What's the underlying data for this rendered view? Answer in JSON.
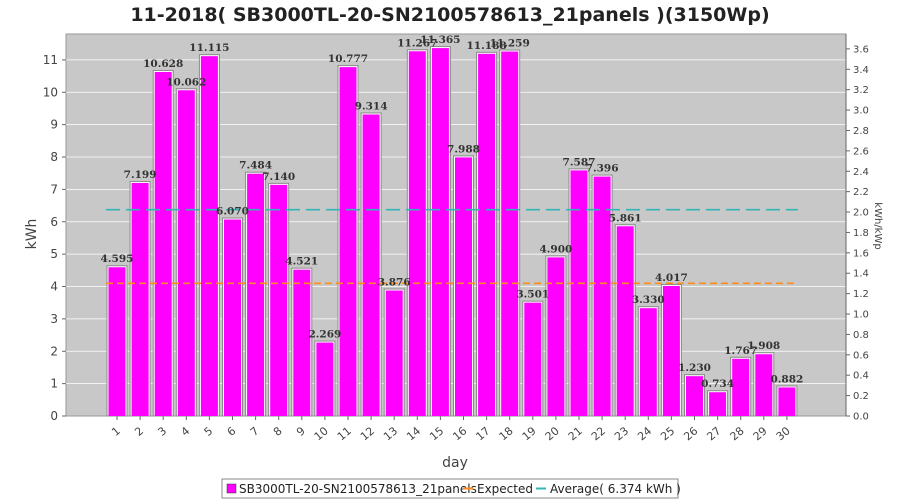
{
  "chart_data": {
    "type": "bar",
    "title": "11-2018( SB3000TL-20-SN2100578613_21panels )(3150Wp)",
    "xlabel": "day",
    "ylabel": "kWh",
    "y2label": "kWh/kWp",
    "ylim": [
      0,
      11.8
    ],
    "y2lim": [
      0,
      3.746
    ],
    "yticks": [
      "0",
      "1",
      "2",
      "3",
      "4",
      "5",
      "6",
      "7",
      "8",
      "9",
      "10",
      "11"
    ],
    "y2ticks": [
      "0.0",
      "0.2",
      "0.4",
      "0.6",
      "0.8",
      "1.0",
      "1.2",
      "1.4",
      "1.6",
      "1.8",
      "2.0",
      "2.2",
      "2.4",
      "2.6",
      "2.8",
      "3.0",
      "3.2",
      "3.4",
      "3.6"
    ],
    "categories": [
      "1",
      "2",
      "3",
      "4",
      "5",
      "6",
      "7",
      "8",
      "9",
      "10",
      "11",
      "12",
      "13",
      "14",
      "15",
      "16",
      "17",
      "18",
      "19",
      "20",
      "21",
      "22",
      "23",
      "24",
      "25",
      "26",
      "27",
      "28",
      "29",
      "30"
    ],
    "series": [
      {
        "name": "SB3000TL-20-SN2100578613_21panels",
        "color": "#ff00ff",
        "values": [
          4.595,
          7.199,
          10.628,
          10.062,
          11.115,
          6.07,
          7.484,
          7.14,
          4.521,
          2.269,
          10.777,
          9.314,
          3.876,
          11.267,
          11.365,
          7.988,
          11.188,
          11.259,
          3.501,
          4.9,
          7.587,
          7.396,
          5.861,
          3.33,
          4.017,
          1.23,
          0.734,
          1.767,
          1.908,
          0.882
        ],
        "labels": [
          "4.595",
          "7.199",
          "10.628",
          "10.062",
          "11.115",
          "6.070",
          "7.484",
          "7.140",
          "4.521",
          "2.269",
          "10.777",
          "9.314",
          "3.876",
          "11.267",
          "11.365",
          "7.988",
          "11.188",
          "11.259",
          "3.501",
          "4.900",
          "7.587",
          "7.396",
          "5.861",
          "3.330",
          "4.017",
          "1.230",
          "0.734",
          "1.767",
          "1.908",
          "0.882"
        ]
      }
    ],
    "expected": {
      "name": "Expected",
      "color": "#ff8c1a",
      "segments": [
        {
          "from": 1,
          "to": 9,
          "value": 4.1
        },
        {
          "from": 10,
          "to": 19,
          "value": 4.1
        },
        {
          "from": 20,
          "to": 30,
          "value": 4.1
        }
      ]
    },
    "average": {
      "name": "Average( 6.374 kWh )",
      "color": "#33b5b5",
      "value": 6.374
    },
    "grid": true,
    "legend_position": "bottom"
  }
}
